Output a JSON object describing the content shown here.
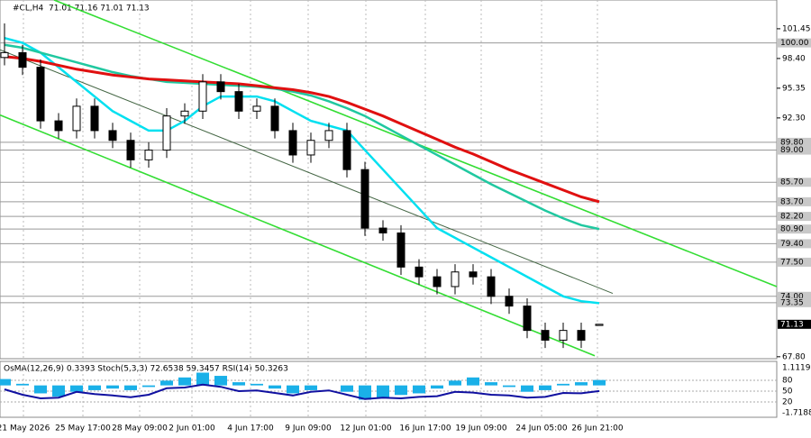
{
  "chart_data": {
    "type": "candlestick",
    "title": "#CL,H4",
    "header_quote": "71.01 71.16 71.01 71.13",
    "x": [
      0,
      1,
      2,
      3,
      4,
      5,
      6,
      7,
      8,
      9,
      10,
      11,
      12,
      13,
      14,
      15,
      16,
      17,
      18,
      19,
      20,
      21,
      22,
      23,
      24,
      25,
      26,
      27,
      28,
      29,
      30,
      31,
      32,
      33
    ],
    "open": [
      98.5,
      99,
      97.5,
      92,
      91,
      93.5,
      91,
      90,
      88,
      89,
      92.5,
      93,
      96,
      95,
      93,
      93.5,
      91,
      88.5,
      90,
      91,
      87,
      81,
      80.5,
      77,
      76,
      75,
      76.5,
      76,
      74,
      73,
      70.5,
      69.5,
      70.5,
      71.01
    ],
    "high": [
      102,
      99.8,
      98.3,
      92.8,
      94.3,
      94.3,
      91.8,
      90.8,
      89.8,
      93.3,
      93.8,
      96.8,
      96.8,
      95.8,
      94.3,
      94.3,
      91.8,
      90.8,
      91.8,
      91.8,
      87.8,
      81.8,
      81.3,
      77.8,
      76.8,
      77.3,
      77.3,
      76.8,
      74.8,
      73.8,
      71.3,
      71.3,
      71.3,
      71.16
    ],
    "low": [
      97.7,
      96.7,
      91.2,
      90.2,
      90.2,
      90.2,
      89.2,
      87.2,
      87.2,
      88.2,
      91.7,
      92.2,
      94.2,
      92.2,
      92.2,
      90.2,
      87.7,
      87.7,
      89.2,
      86.2,
      80.2,
      79.7,
      76.2,
      75.2,
      74.2,
      74.2,
      75.2,
      73.2,
      72.2,
      69.7,
      68.7,
      68.7,
      68.7,
      71.01
    ],
    "close": [
      99,
      97.5,
      92,
      91,
      93.5,
      91,
      90,
      88,
      89,
      92.5,
      93,
      96,
      95,
      93,
      93.5,
      91,
      88.5,
      90,
      91,
      87,
      81,
      80.5,
      77,
      76,
      75,
      76.5,
      76,
      74,
      73,
      70.5,
      69.5,
      70.5,
      69.5,
      71.13
    ],
    "series": [
      {
        "color": "#00e0f0",
        "values": [
          100.5,
          100,
          99,
          97.5,
          96,
          94.5,
          93,
          92,
          91,
          91,
          92,
          93.5,
          94.5,
          94.5,
          94.5,
          94,
          93,
          92,
          91.5,
          91,
          89,
          87,
          85,
          83,
          81,
          80,
          79,
          78,
          77,
          76,
          75,
          74,
          73.5,
          73.3
        ]
      },
      {
        "color": "#20c8a0",
        "values": [
          99.8,
          99.5,
          99,
          98.5,
          98,
          97.5,
          97,
          96.6,
          96.3,
          96,
          95.9,
          95.8,
          95.7,
          95.6,
          95.5,
          95.3,
          95,
          94.6,
          94,
          93.3,
          92.5,
          91.5,
          90.5,
          89.5,
          88.5,
          87.5,
          86.5,
          85.5,
          84.6,
          83.7,
          82.8,
          82,
          81.3,
          80.9
        ]
      },
      {
        "color": "#e01010",
        "values": [
          98.6,
          98.4,
          98.1,
          97.7,
          97.3,
          97,
          96.7,
          96.5,
          96.3,
          96.2,
          96.1,
          96,
          95.9,
          95.8,
          95.6,
          95.4,
          95.2,
          94.9,
          94.5,
          93.9,
          93.2,
          92.5,
          91.7,
          90.9,
          90.1,
          89.3,
          88.6,
          87.8,
          87,
          86.3,
          85.6,
          84.9,
          84.2,
          83.7
        ]
      }
    ],
    "trend_lines": [
      {
        "color": "#33dd33",
        "x": [
          2.75,
          42.85
        ],
        "y": [
          104.4,
          75.0
        ]
      },
      {
        "color": "#33dd33",
        "x": [
          -0.25,
          32.75
        ],
        "y": [
          92.6,
          67.9
        ]
      },
      {
        "color": "#446644",
        "x": [
          -0.25,
          33.75
        ],
        "y": [
          99.3,
          74.3
        ]
      }
    ],
    "levels": [
      {
        "value": 100,
        "label": "100.00"
      },
      {
        "value": 89.8,
        "label": "89.80"
      },
      {
        "value": 89,
        "label": "89.00"
      },
      {
        "value": 85.7,
        "label": "85.70"
      },
      {
        "value": 83.7,
        "label": "83.70"
      },
      {
        "value": 82.2,
        "label": "82.20"
      },
      {
        "value": 80.9,
        "label": "80.90"
      },
      {
        "value": 79.4,
        "label": "79.40"
      },
      {
        "value": 77.5,
        "label": "77.50"
      },
      {
        "value": 74,
        "label": "74.00"
      },
      {
        "value": 73.35,
        "label": "73.35"
      }
    ],
    "last_price": 71.13,
    "xlim": [
      -0.25,
      42.85
    ],
    "ylim": [
      67.6,
      104.4
    ],
    "yticks": [
      101.45,
      {
        "value": 98.4,
        "label": "98.40"
      },
      95.35,
      {
        "value": 92.3,
        "label": "92.30"
      },
      {
        "value": 67.8,
        "label": "67.80"
      }
    ],
    "xticks": [
      {
        "value": 1.05,
        "label": "21 May 2026"
      },
      {
        "value": 4.35,
        "label": "25 May 17:00"
      },
      {
        "value": 7.5,
        "label": "28 May 09:00"
      },
      {
        "value": 10.4,
        "label": "2 Jun 01:00"
      },
      {
        "value": 13.65,
        "label": "4 Jun 17:00"
      },
      {
        "value": 16.85,
        "label": "9 Jun 09:00"
      },
      {
        "value": 20.05,
        "label": "12 Jun 01:00"
      },
      {
        "value": 23.35,
        "label": "16 Jun 17:00"
      },
      {
        "value": 26.45,
        "label": "19 Jun 09:00"
      },
      {
        "value": 29.8,
        "label": "24 Jun 05:00"
      },
      {
        "value": 32.9,
        "label": "26 Jun 21:00"
      }
    ],
    "indicator": {
      "title": "OsMA(12,26,9) 0.3393  Stoch(5,3,3) 72.6538 59.3457  RSI(14) 50.3263",
      "osma": [
        0.4,
        0.1,
        -0.5,
        -0.7,
        -0.4,
        -0.3,
        -0.2,
        -0.3,
        -0.1,
        0.3,
        0.5,
        0.8,
        0.6,
        0.2,
        0.1,
        -0.2,
        -0.5,
        -0.3,
        0,
        -0.4,
        -0.9,
        -0.8,
        -0.6,
        -0.5,
        -0.2,
        0.3,
        0.5,
        0.2,
        -0.1,
        -0.4,
        -0.3,
        0.1,
        0.2,
        0.3393
      ],
      "osma_color": "#1ab0e8",
      "osma_lim": [
        -1.7188,
        1.1119
      ],
      "osma_ticks": [
        1.1119,
        -1.7188
      ],
      "rsi": [
        55,
        40,
        30,
        32,
        48,
        42,
        38,
        33,
        40,
        58,
        60,
        68,
        62,
        50,
        52,
        45,
        38,
        48,
        52,
        40,
        28,
        32,
        30,
        34,
        36,
        48,
        46,
        40,
        38,
        32,
        34,
        45,
        44,
        50.3263
      ],
      "rsi_color": "#1010a0",
      "rsi_lim": [
        0,
        100
      ],
      "levels": [
        80,
        50,
        20
      ]
    }
  }
}
